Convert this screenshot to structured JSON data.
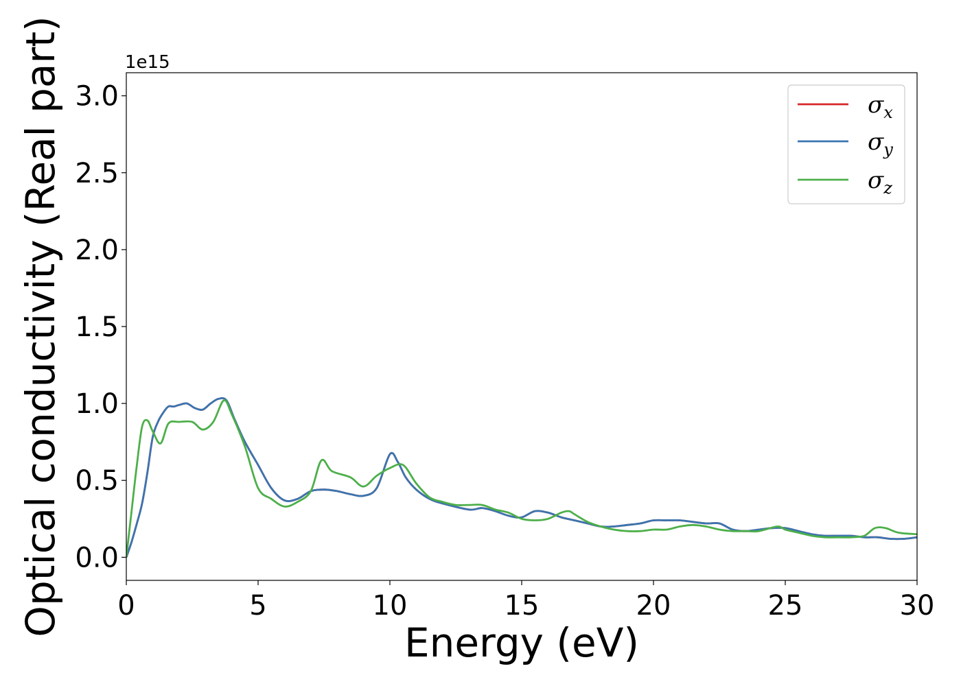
{
  "chart_data": {
    "type": "line",
    "xlabel": "Energy (eV)",
    "ylabel": "Optical conductivity (Real part)",
    "y_offset_text": "1e15",
    "xlim": [
      0,
      30
    ],
    "ylim": [
      -0.15,
      3.15
    ],
    "y_scale_factor": 1000000000000000.0,
    "xticks": [
      0,
      5,
      10,
      15,
      20,
      25,
      30
    ],
    "xtick_labels": [
      "0",
      "5",
      "10",
      "15",
      "20",
      "25",
      "30"
    ],
    "yticks": [
      0.0,
      0.5,
      1.0,
      1.5,
      2.0,
      2.5,
      3.0
    ],
    "ytick_labels": [
      "0.0",
      "0.5",
      "1.0",
      "1.5",
      "2.0",
      "2.5",
      "3.0"
    ],
    "grid": false,
    "legend_position": "top-right",
    "series": [
      {
        "name": "σx",
        "legend_base": "σ",
        "legend_sub": "x",
        "color": "#d62728",
        "x": [
          0,
          0.2,
          0.4,
          0.6,
          0.8,
          1.0,
          1.2,
          1.4,
          1.6,
          1.8,
          2.0,
          2.3,
          2.6,
          2.9,
          3.2,
          3.5,
          3.8,
          4.1,
          4.5,
          5.0,
          5.5,
          6.0,
          6.5,
          7.0,
          7.5,
          8.0,
          8.5,
          9.0,
          9.5,
          10.0,
          10.3,
          10.6,
          11.0,
          11.5,
          12.0,
          13.0,
          13.5,
          14.0,
          14.5,
          15.0,
          15.5,
          16.0,
          16.5,
          17.0,
          17.5,
          18.0,
          18.5,
          19.0,
          19.5,
          20.0,
          20.5,
          21.0,
          21.5,
          22.0,
          22.5,
          23.0,
          23.5,
          24.0,
          24.5,
          25.0,
          25.5,
          26.0,
          26.5,
          27.0,
          27.5,
          28.0,
          28.5,
          29.0,
          29.5,
          30.0
        ],
        "y": [
          0.0,
          0.1,
          0.22,
          0.35,
          0.55,
          0.78,
          0.88,
          0.94,
          0.98,
          0.98,
          0.99,
          1.0,
          0.97,
          0.96,
          1.0,
          1.03,
          1.02,
          0.9,
          0.75,
          0.6,
          0.45,
          0.37,
          0.38,
          0.43,
          0.44,
          0.43,
          0.41,
          0.4,
          0.45,
          0.67,
          0.62,
          0.52,
          0.44,
          0.38,
          0.35,
          0.31,
          0.32,
          0.3,
          0.27,
          0.26,
          0.3,
          0.29,
          0.26,
          0.24,
          0.22,
          0.2,
          0.2,
          0.21,
          0.22,
          0.24,
          0.24,
          0.24,
          0.23,
          0.22,
          0.22,
          0.18,
          0.17,
          0.18,
          0.19,
          0.19,
          0.17,
          0.15,
          0.14,
          0.14,
          0.14,
          0.13,
          0.13,
          0.12,
          0.12,
          0.13
        ]
      },
      {
        "name": "σy",
        "legend_base": "σ",
        "legend_sub": "y",
        "color": "#3a75b0",
        "x": [
          0,
          0.2,
          0.4,
          0.6,
          0.8,
          1.0,
          1.2,
          1.4,
          1.6,
          1.8,
          2.0,
          2.3,
          2.6,
          2.9,
          3.2,
          3.5,
          3.8,
          4.1,
          4.5,
          5.0,
          5.5,
          6.0,
          6.5,
          7.0,
          7.5,
          8.0,
          8.5,
          9.0,
          9.5,
          10.0,
          10.3,
          10.6,
          11.0,
          11.5,
          12.0,
          13.0,
          13.5,
          14.0,
          14.5,
          15.0,
          15.5,
          16.0,
          16.5,
          17.0,
          17.5,
          18.0,
          18.5,
          19.0,
          19.5,
          20.0,
          20.5,
          21.0,
          21.5,
          22.0,
          22.5,
          23.0,
          23.5,
          24.0,
          24.5,
          25.0,
          25.5,
          26.0,
          26.5,
          27.0,
          27.5,
          28.0,
          28.5,
          29.0,
          29.5,
          30.0
        ],
        "y": [
          0.0,
          0.1,
          0.22,
          0.35,
          0.55,
          0.78,
          0.88,
          0.94,
          0.98,
          0.98,
          0.99,
          1.0,
          0.97,
          0.96,
          1.0,
          1.03,
          1.02,
          0.9,
          0.75,
          0.6,
          0.45,
          0.37,
          0.38,
          0.43,
          0.44,
          0.43,
          0.41,
          0.4,
          0.45,
          0.67,
          0.62,
          0.52,
          0.44,
          0.38,
          0.35,
          0.31,
          0.32,
          0.3,
          0.27,
          0.26,
          0.3,
          0.29,
          0.26,
          0.24,
          0.22,
          0.2,
          0.2,
          0.21,
          0.22,
          0.24,
          0.24,
          0.24,
          0.23,
          0.22,
          0.22,
          0.18,
          0.17,
          0.18,
          0.19,
          0.19,
          0.17,
          0.15,
          0.14,
          0.14,
          0.14,
          0.13,
          0.13,
          0.12,
          0.12,
          0.13
        ]
      },
      {
        "name": "σz",
        "legend_base": "σ",
        "legend_sub": "z",
        "color": "#4daf4a",
        "x": [
          0,
          0.2,
          0.4,
          0.6,
          0.8,
          1.0,
          1.3,
          1.6,
          2.0,
          2.5,
          2.9,
          3.3,
          3.7,
          4.0,
          4.5,
          5.0,
          5.5,
          6.0,
          6.5,
          7.0,
          7.4,
          7.8,
          8.5,
          9.0,
          9.5,
          10.0,
          10.5,
          11.0,
          11.5,
          12.0,
          12.5,
          13.0,
          13.5,
          14.0,
          14.5,
          15.0,
          15.5,
          16.0,
          16.5,
          16.8,
          17.0,
          17.5,
          18.0,
          18.5,
          19.0,
          19.5,
          20.0,
          20.5,
          21.0,
          21.5,
          22.0,
          22.5,
          23.0,
          23.5,
          24.0,
          24.7,
          25.0,
          25.5,
          26.0,
          26.5,
          27.0,
          27.5,
          28.0,
          28.4,
          28.8,
          29.3,
          30.0
        ],
        "y": [
          0.0,
          0.3,
          0.6,
          0.85,
          0.89,
          0.82,
          0.74,
          0.87,
          0.88,
          0.88,
          0.83,
          0.88,
          1.02,
          0.93,
          0.72,
          0.45,
          0.38,
          0.33,
          0.36,
          0.43,
          0.63,
          0.56,
          0.52,
          0.46,
          0.53,
          0.58,
          0.6,
          0.48,
          0.39,
          0.36,
          0.34,
          0.34,
          0.34,
          0.31,
          0.29,
          0.25,
          0.24,
          0.25,
          0.29,
          0.3,
          0.28,
          0.23,
          0.2,
          0.18,
          0.17,
          0.17,
          0.18,
          0.18,
          0.2,
          0.21,
          0.2,
          0.18,
          0.17,
          0.17,
          0.17,
          0.2,
          0.18,
          0.16,
          0.14,
          0.13,
          0.13,
          0.13,
          0.14,
          0.19,
          0.19,
          0.16,
          0.15
        ]
      }
    ]
  }
}
